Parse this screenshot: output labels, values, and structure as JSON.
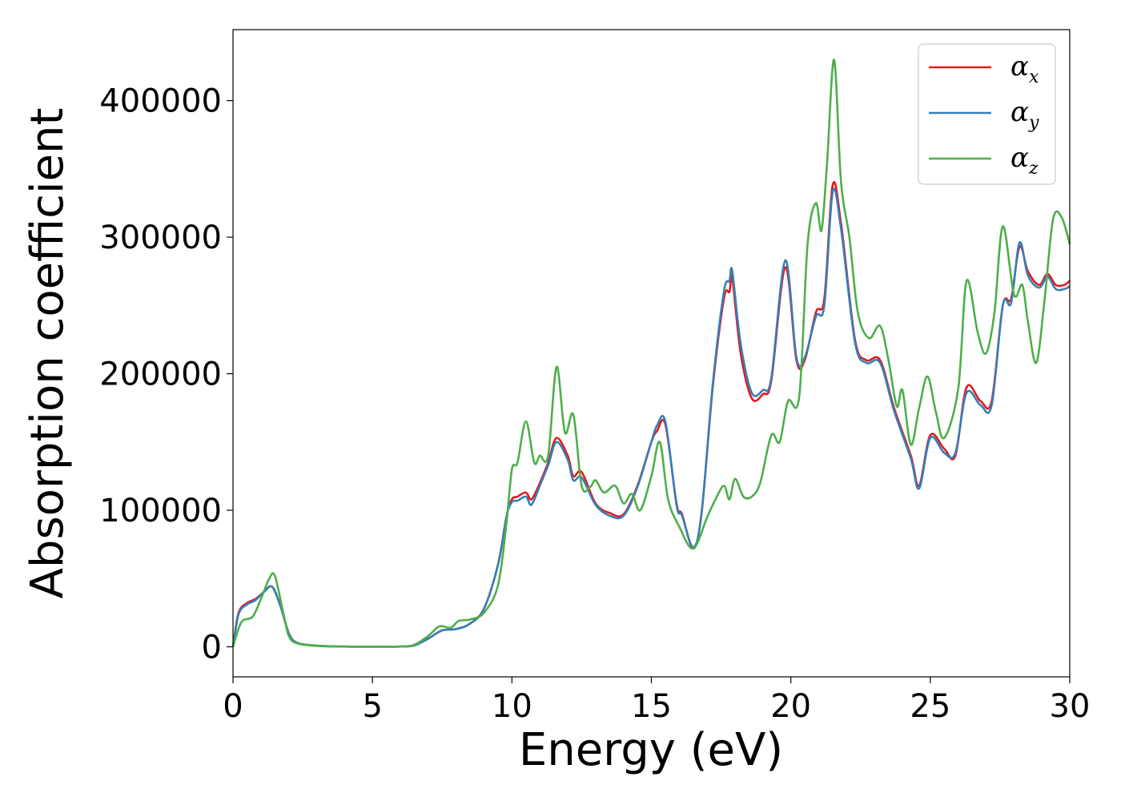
{
  "chart_data": {
    "type": "line",
    "title": "",
    "xlabel": "Energy (eV)",
    "ylabel": "Absorption coefficient",
    "xlim": [
      0,
      30
    ],
    "ylim": [
      -22000,
      452000
    ],
    "xticks": [
      0,
      5,
      10,
      15,
      20,
      25,
      30
    ],
    "yticks": [
      0,
      100000,
      200000,
      300000,
      400000
    ],
    "grid": false,
    "legend_position": "top-right",
    "series": [
      {
        "name": "αx",
        "legend_base": "α",
        "legend_sub": "x",
        "color": "#e41a1c",
        "x": [
          0,
          0.2,
          0.5,
          0.8,
          1.1,
          1.4,
          1.7,
          2.0,
          2.3,
          3.0,
          4.0,
          5.0,
          6.0,
          6.5,
          7.0,
          7.5,
          8.0,
          8.5,
          9.0,
          9.5,
          9.8,
          10.0,
          10.2,
          10.5,
          10.7,
          11.0,
          11.3,
          11.6,
          12.0,
          12.2,
          12.5,
          13.0,
          13.5,
          14.0,
          14.5,
          15.0,
          15.2,
          15.5,
          15.9,
          16.1,
          16.5,
          16.8,
          17.2,
          17.6,
          17.8,
          17.9,
          18.2,
          18.6,
          19.0,
          19.3,
          19.8,
          20.2,
          20.5,
          20.9,
          21.2,
          21.5,
          21.8,
          22.3,
          22.7,
          23.2,
          23.7,
          24.3,
          24.6,
          25.0,
          25.5,
          25.9,
          26.3,
          26.8,
          27.2,
          27.6,
          27.9,
          28.2,
          28.5,
          28.9,
          29.2,
          29.5,
          29.8,
          30.0
        ],
        "y": [
          0,
          25000,
          32000,
          35000,
          40000,
          44000,
          30000,
          10000,
          3000,
          800,
          200,
          100,
          200,
          1000,
          6000,
          12000,
          13000,
          17000,
          28000,
          60000,
          95000,
          108000,
          110000,
          113000,
          108000,
          120000,
          135000,
          153000,
          140000,
          125000,
          128000,
          105000,
          98000,
          97000,
          118000,
          150000,
          158000,
          163000,
          105000,
          97000,
          72000,
          98000,
          190000,
          255000,
          260000,
          270000,
          215000,
          182000,
          185000,
          195000,
          278000,
          210000,
          210000,
          245000,
          255000,
          338000,
          310000,
          225000,
          210000,
          210000,
          175000,
          140000,
          118000,
          155000,
          145000,
          140000,
          190000,
          180000,
          180000,
          250000,
          255000,
          293000,
          275000,
          265000,
          273000,
          265000,
          265000,
          268000
        ]
      },
      {
        "name": "αy",
        "legend_base": "α",
        "legend_sub": "y",
        "color": "#377eb8",
        "x": [
          0,
          0.2,
          0.5,
          0.8,
          1.1,
          1.4,
          1.7,
          2.0,
          2.3,
          3.0,
          4.0,
          5.0,
          6.0,
          6.5,
          7.0,
          7.5,
          8.0,
          8.5,
          9.0,
          9.5,
          9.8,
          10.0,
          10.2,
          10.5,
          10.7,
          11.0,
          11.3,
          11.6,
          12.0,
          12.2,
          12.5,
          13.0,
          13.5,
          14.0,
          14.5,
          15.0,
          15.2,
          15.5,
          15.9,
          16.1,
          16.5,
          16.8,
          17.2,
          17.6,
          17.8,
          17.9,
          18.2,
          18.6,
          19.0,
          19.3,
          19.8,
          20.2,
          20.5,
          20.9,
          21.2,
          21.5,
          21.8,
          22.3,
          22.7,
          23.2,
          23.7,
          24.3,
          24.6,
          25.0,
          25.5,
          25.9,
          26.3,
          26.8,
          27.2,
          27.6,
          27.9,
          28.2,
          28.5,
          28.9,
          29.2,
          29.5,
          29.8,
          30.0
        ],
        "y": [
          0,
          24000,
          31000,
          34000,
          40000,
          44000,
          30000,
          10000,
          3000,
          800,
          200,
          100,
          200,
          1000,
          6000,
          12000,
          13000,
          17000,
          28000,
          60000,
          95000,
          106000,
          107000,
          110000,
          104000,
          118000,
          133000,
          150000,
          137000,
          122000,
          124000,
          104000,
          96000,
          96000,
          117000,
          150000,
          162000,
          165000,
          104000,
          96000,
          73000,
          98000,
          192000,
          260000,
          268000,
          275000,
          222000,
          186000,
          188000,
          197000,
          283000,
          212000,
          212000,
          242000,
          250000,
          333000,
          306000,
          223000,
          208000,
          208000,
          173000,
          138000,
          116000,
          153000,
          142000,
          142000,
          186000,
          177000,
          177000,
          250000,
          252000,
          296000,
          272000,
          263000,
          271000,
          262000,
          262000,
          264000
        ]
      },
      {
        "name": "αz",
        "legend_base": "α",
        "legend_sub": "z",
        "color": "#4daf4a",
        "x": [
          0,
          0.3,
          0.7,
          1.0,
          1.3,
          1.5,
          1.8,
          2.0,
          2.3,
          3.0,
          4.0,
          5.0,
          6.0,
          6.5,
          7.0,
          7.4,
          7.8,
          8.1,
          8.5,
          9.0,
          9.5,
          9.8,
          10.0,
          10.2,
          10.5,
          10.8,
          11.0,
          11.3,
          11.6,
          11.9,
          12.2,
          12.5,
          12.8,
          13.0,
          13.3,
          13.7,
          14.0,
          14.3,
          14.6,
          15.0,
          15.3,
          15.6,
          16.0,
          16.5,
          17.0,
          17.3,
          17.6,
          17.8,
          18.0,
          18.3,
          18.6,
          18.9,
          19.3,
          19.6,
          19.9,
          20.3,
          20.6,
          20.9,
          21.1,
          21.3,
          21.55,
          21.8,
          22.1,
          22.4,
          22.8,
          23.2,
          23.5,
          23.8,
          24.0,
          24.3,
          24.6,
          24.9,
          25.2,
          25.5,
          26.0,
          26.3,
          26.7,
          27.0,
          27.3,
          27.6,
          28.0,
          28.3,
          28.5,
          28.8,
          29.1,
          29.4,
          29.7,
          30.0
        ],
        "y": [
          0,
          18000,
          22000,
          35000,
          50000,
          52000,
          25000,
          8000,
          2500,
          700,
          150,
          80,
          200,
          1500,
          8000,
          15000,
          14000,
          19000,
          20000,
          25000,
          45000,
          90000,
          130000,
          135000,
          165000,
          135000,
          140000,
          140000,
          205000,
          157000,
          170000,
          118000,
          117000,
          122000,
          113000,
          118000,
          105000,
          112000,
          100000,
          125000,
          150000,
          108000,
          88000,
          72000,
          95000,
          108000,
          118000,
          108000,
          123000,
          110000,
          110000,
          120000,
          155000,
          150000,
          180000,
          183000,
          295000,
          325000,
          305000,
          355000,
          430000,
          340000,
          300000,
          245000,
          226000,
          235000,
          210000,
          176000,
          188000,
          148000,
          175000,
          198000,
          172000,
          153000,
          189000,
          268000,
          230000,
          215000,
          245000,
          308000,
          258000,
          265000,
          238000,
          208000,
          255000,
          313000,
          315000,
          295000
        ]
      }
    ]
  }
}
